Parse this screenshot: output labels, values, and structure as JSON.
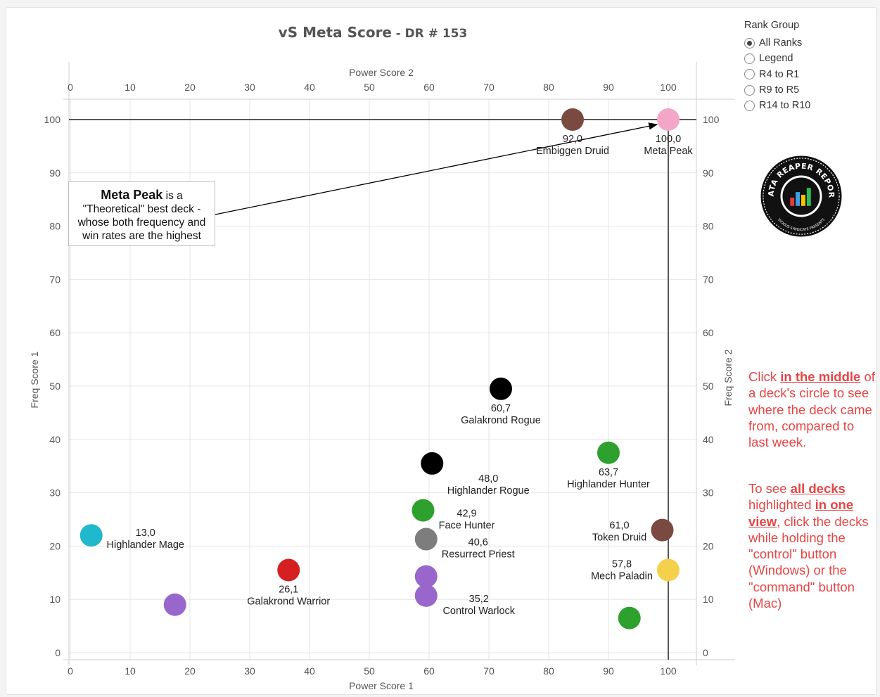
{
  "chart_data": {
    "type": "scatter",
    "title": "vS Meta Score",
    "subtitle": "- DR # 153",
    "xlabel": "Power Score 1",
    "x2label": "Power Score 2",
    "ylabel": "Freq Score 1",
    "y2label": "Freq Score 2",
    "xlim": [
      0,
      105
    ],
    "ylim": [
      0,
      105
    ],
    "xticks": [
      0,
      10,
      20,
      30,
      40,
      50,
      60,
      70,
      80,
      90,
      100
    ],
    "yticks": [
      0,
      10,
      20,
      30,
      40,
      50,
      60,
      70,
      80,
      90,
      100
    ],
    "grid": true,
    "reference_lines": {
      "x": 100,
      "y": 100
    },
    "points": [
      {
        "x": 84,
        "y": 100,
        "score": "92,0",
        "name": "Embiggen Druid",
        "color": "#7a4a40"
      },
      {
        "x": 100,
        "y": 100,
        "score": "100,0",
        "name": "Meta Peak",
        "color": "#f4a6c8"
      },
      {
        "x": 72,
        "y": 49.5,
        "score": "60,7",
        "name": "Galakrond Rogue",
        "color": "#000000"
      },
      {
        "x": 60.5,
        "y": 35.5,
        "score": "48,0",
        "name": "Highlander Rogue",
        "color": "#000000"
      },
      {
        "x": 90,
        "y": 37.5,
        "score": "63,7",
        "name": "Highlander Hunter",
        "color": "#2ea02e"
      },
      {
        "x": 59,
        "y": 26.7,
        "score": "42,9",
        "name": "Face Hunter",
        "color": "#2ea02e"
      },
      {
        "x": 59.5,
        "y": 21.3,
        "score": "40,6",
        "name": "Resurrect Priest",
        "color": "#7d7d7d"
      },
      {
        "x": 3.5,
        "y": 22,
        "score": "13,0",
        "name": "Highlander Mage",
        "color": "#1fb8cc"
      },
      {
        "x": 99,
        "y": 23,
        "score": "61,0",
        "name": "Token Druid",
        "color": "#7a4a40"
      },
      {
        "x": 100,
        "y": 15.5,
        "score": "57,8",
        "name": "Mech Paladin",
        "color": "#f5d04a"
      },
      {
        "x": 36.5,
        "y": 15.5,
        "score": "26,1",
        "name": "Galakrond Warrior",
        "color": "#d42020"
      },
      {
        "x": 59.5,
        "y": 14.3,
        "score": "",
        "name": "",
        "color": "#9966cc"
      },
      {
        "x": 59.5,
        "y": 10.7,
        "score": "35,2",
        "name": "Control Warlock",
        "color": "#9966cc"
      },
      {
        "x": 17.5,
        "y": 9,
        "score": "",
        "name": "",
        "color": "#9966cc"
      },
      {
        "x": 93.5,
        "y": 6.5,
        "score": "",
        "name": "",
        "color": "#2ea02e"
      }
    ]
  },
  "callout": {
    "bold": "Meta Peak",
    "text1": " is a",
    "text2": "\"Theoretical\" best deck -",
    "text3": "whose both frequency and",
    "text4": "win rates are the highest"
  },
  "rank_group": {
    "title": "Rank Group",
    "options": [
      "All Ranks",
      "Legend",
      "R4 to R1",
      "R9 to R5",
      "R14 to R10"
    ],
    "selected": "All Ranks"
  },
  "logo": {
    "top_text": "DATA REAPER REPORT",
    "bottom_text": "VICIOUS SYNDICATE PRESENTS",
    "icon": "bar-chart-icon"
  },
  "note1": {
    "p1": "Click ",
    "b1": "in the middle",
    "p2": " of a deck's circle to see where the deck came from, compared to last week."
  },
  "note2": {
    "p1": "To see ",
    "b1": "all decks",
    "p2": " highlighted ",
    "b2": "in one view",
    "p3": ", click the decks while holding the \"control\" button (Windows) or the \"command\" button (Mac)"
  },
  "colors": {
    "accent": "#e64545",
    "axis": "#555555"
  }
}
